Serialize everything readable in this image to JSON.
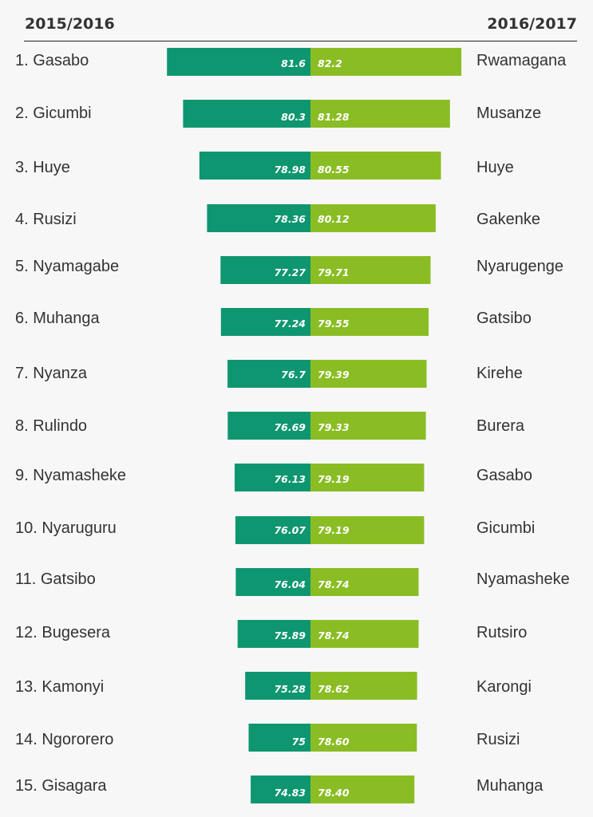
{
  "header": {
    "left": "2015/2016",
    "right": "2016/2017"
  },
  "colors": {
    "left_bar": "#0e9670",
    "right_bar": "#8abd24",
    "rule": "#222222",
    "background": "#f7f7f7"
  },
  "chart_data": {
    "type": "bar",
    "orientation": "horizontal-diverging",
    "series": [
      {
        "name": "2015/2016",
        "labels": [
          "1. Gasabo",
          "2. Gicumbi",
          "3. Huye",
          "4. Rusizi",
          "5. Nyamagabe",
          "6. Muhanga",
          "7. Nyanza",
          "8. Rulindo",
          "9. Nyamasheke",
          "10. Nyaruguru",
          "11. Gatsibo",
          "12. Bugesera",
          "13. Kamonyi",
          "14. Ngororero",
          "15. Gisagara"
        ],
        "values": [
          81.6,
          80.3,
          78.98,
          78.36,
          77.27,
          77.24,
          76.7,
          76.69,
          76.13,
          76.07,
          76.04,
          75.89,
          75.28,
          75,
          74.83
        ],
        "value_labels": [
          "81.6",
          "80.3",
          "78.98",
          "78.36",
          "77.27",
          "77.24",
          "76.7",
          "76.69",
          "76.13",
          "76.07",
          "76.04",
          "75.89",
          "75.28",
          "75",
          "74.83"
        ]
      },
      {
        "name": "2016/2017",
        "labels": [
          "Rwamagana",
          "Musanze",
          "Huye",
          "Gakenke",
          "Nyarugenge",
          "Gatsibo",
          "Kirehe",
          "Burera",
          "Gasabo",
          "Gicumbi",
          "Nyamasheke",
          "Rutsiro",
          "Karongi",
          "Rusizi",
          "Muhanga"
        ],
        "values": [
          82.2,
          81.28,
          80.55,
          80.12,
          79.71,
          79.55,
          79.39,
          79.33,
          79.19,
          79.19,
          78.74,
          78.74,
          78.62,
          78.6,
          78.4
        ],
        "value_labels": [
          "82.2",
          "81.28",
          "80.55",
          "80.12",
          "79.71",
          "79.55",
          "79.39",
          "79.33",
          "79.19",
          "79.19",
          "78.74",
          "78.74",
          "78.62",
          "78.60",
          "78.40"
        ]
      }
    ],
    "xlim": [
      70,
      83
    ]
  }
}
